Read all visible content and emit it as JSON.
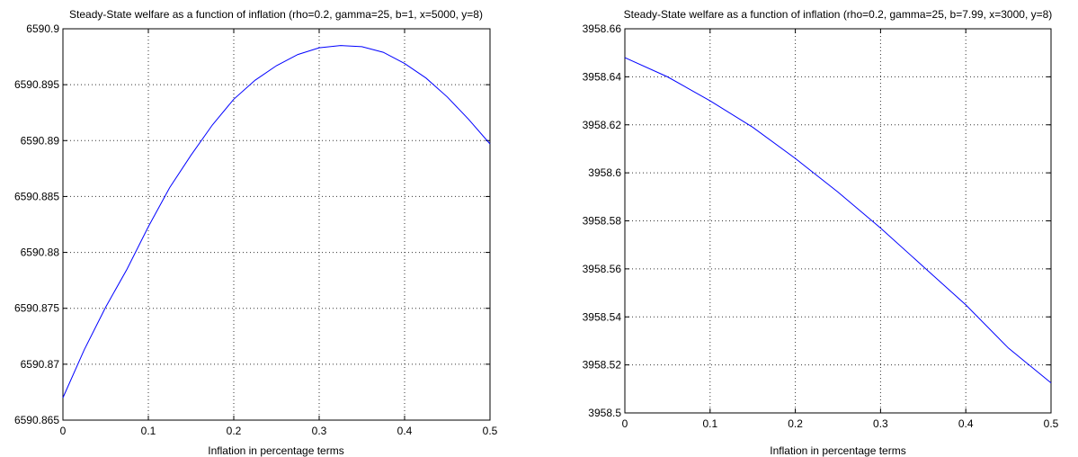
{
  "chart_data": [
    {
      "type": "line",
      "title": "Steady-State welfare as a function of inflation (rho=0.2, gamma=25, b=1, x=5000, y=8)",
      "xlabel": "Inflation in percentage terms",
      "ylabel": "",
      "xlim": [
        0,
        0.5
      ],
      "ylim": [
        6590.865,
        6590.9
      ],
      "xticks": [
        0,
        0.1,
        0.2,
        0.3,
        0.4,
        0.5
      ],
      "xtick_labels": [
        "0",
        "0.1",
        "0.2",
        "0.3",
        "0.4",
        "0.5"
      ],
      "yticks": [
        6590.865,
        6590.87,
        6590.875,
        6590.88,
        6590.885,
        6590.89,
        6590.895,
        6590.9
      ],
      "ytick_labels": [
        "6590.865",
        "6590.87",
        "6590.875",
        "6590.88",
        "6590.885",
        "6590.89",
        "6590.895",
        "6590.9"
      ],
      "grid": true,
      "color": "#0000ff",
      "series": [
        {
          "x": [
            0,
            0.025,
            0.05,
            0.075,
            0.1,
            0.125,
            0.15,
            0.175,
            0.2,
            0.225,
            0.25,
            0.275,
            0.3,
            0.325,
            0.35,
            0.375,
            0.4,
            0.425,
            0.45,
            0.475,
            0.5
          ],
          "y": [
            6590.867,
            6590.8713,
            6590.8751,
            6590.8785,
            6590.8823,
            6590.8858,
            6590.8887,
            6590.8914,
            6590.8937,
            6590.8954,
            6590.8967,
            6590.8977,
            6590.8983,
            6590.8985,
            6590.8984,
            6590.8979,
            6590.8969,
            6590.8956,
            6590.8939,
            6590.8919,
            6590.8897
          ]
        }
      ]
    },
    {
      "type": "line",
      "title": "Steady-State welfare as a function of inflation (rho=0.2, gamma=25, b=7.99, x=3000, y=8)",
      "xlabel": "Inflation in percentage terms",
      "ylabel": "",
      "xlim": [
        0,
        0.5
      ],
      "ylim": [
        3958.5,
        3958.66
      ],
      "xticks": [
        0,
        0.1,
        0.2,
        0.3,
        0.4,
        0.5
      ],
      "xtick_labels": [
        "0",
        "0.1",
        "0.2",
        "0.3",
        "0.4",
        "0.5"
      ],
      "yticks": [
        3958.5,
        3958.52,
        3958.54,
        3958.56,
        3958.58,
        3958.6,
        3958.62,
        3958.64,
        3958.66
      ],
      "ytick_labels": [
        "3958.5",
        "3958.52",
        "3958.54",
        "3958.56",
        "3958.58",
        "3958.6",
        "3958.62",
        "3958.64",
        "3958.66"
      ],
      "grid": true,
      "color": "#0000ff",
      "series": [
        {
          "x": [
            0,
            0.05,
            0.1,
            0.15,
            0.2,
            0.25,
            0.3,
            0.35,
            0.4,
            0.45,
            0.5
          ],
          "y": [
            3958.648,
            3958.64,
            3958.63,
            3958.619,
            3958.606,
            3958.592,
            3958.577,
            3958.561,
            3958.545,
            3958.527,
            3958.5125
          ]
        }
      ]
    }
  ]
}
